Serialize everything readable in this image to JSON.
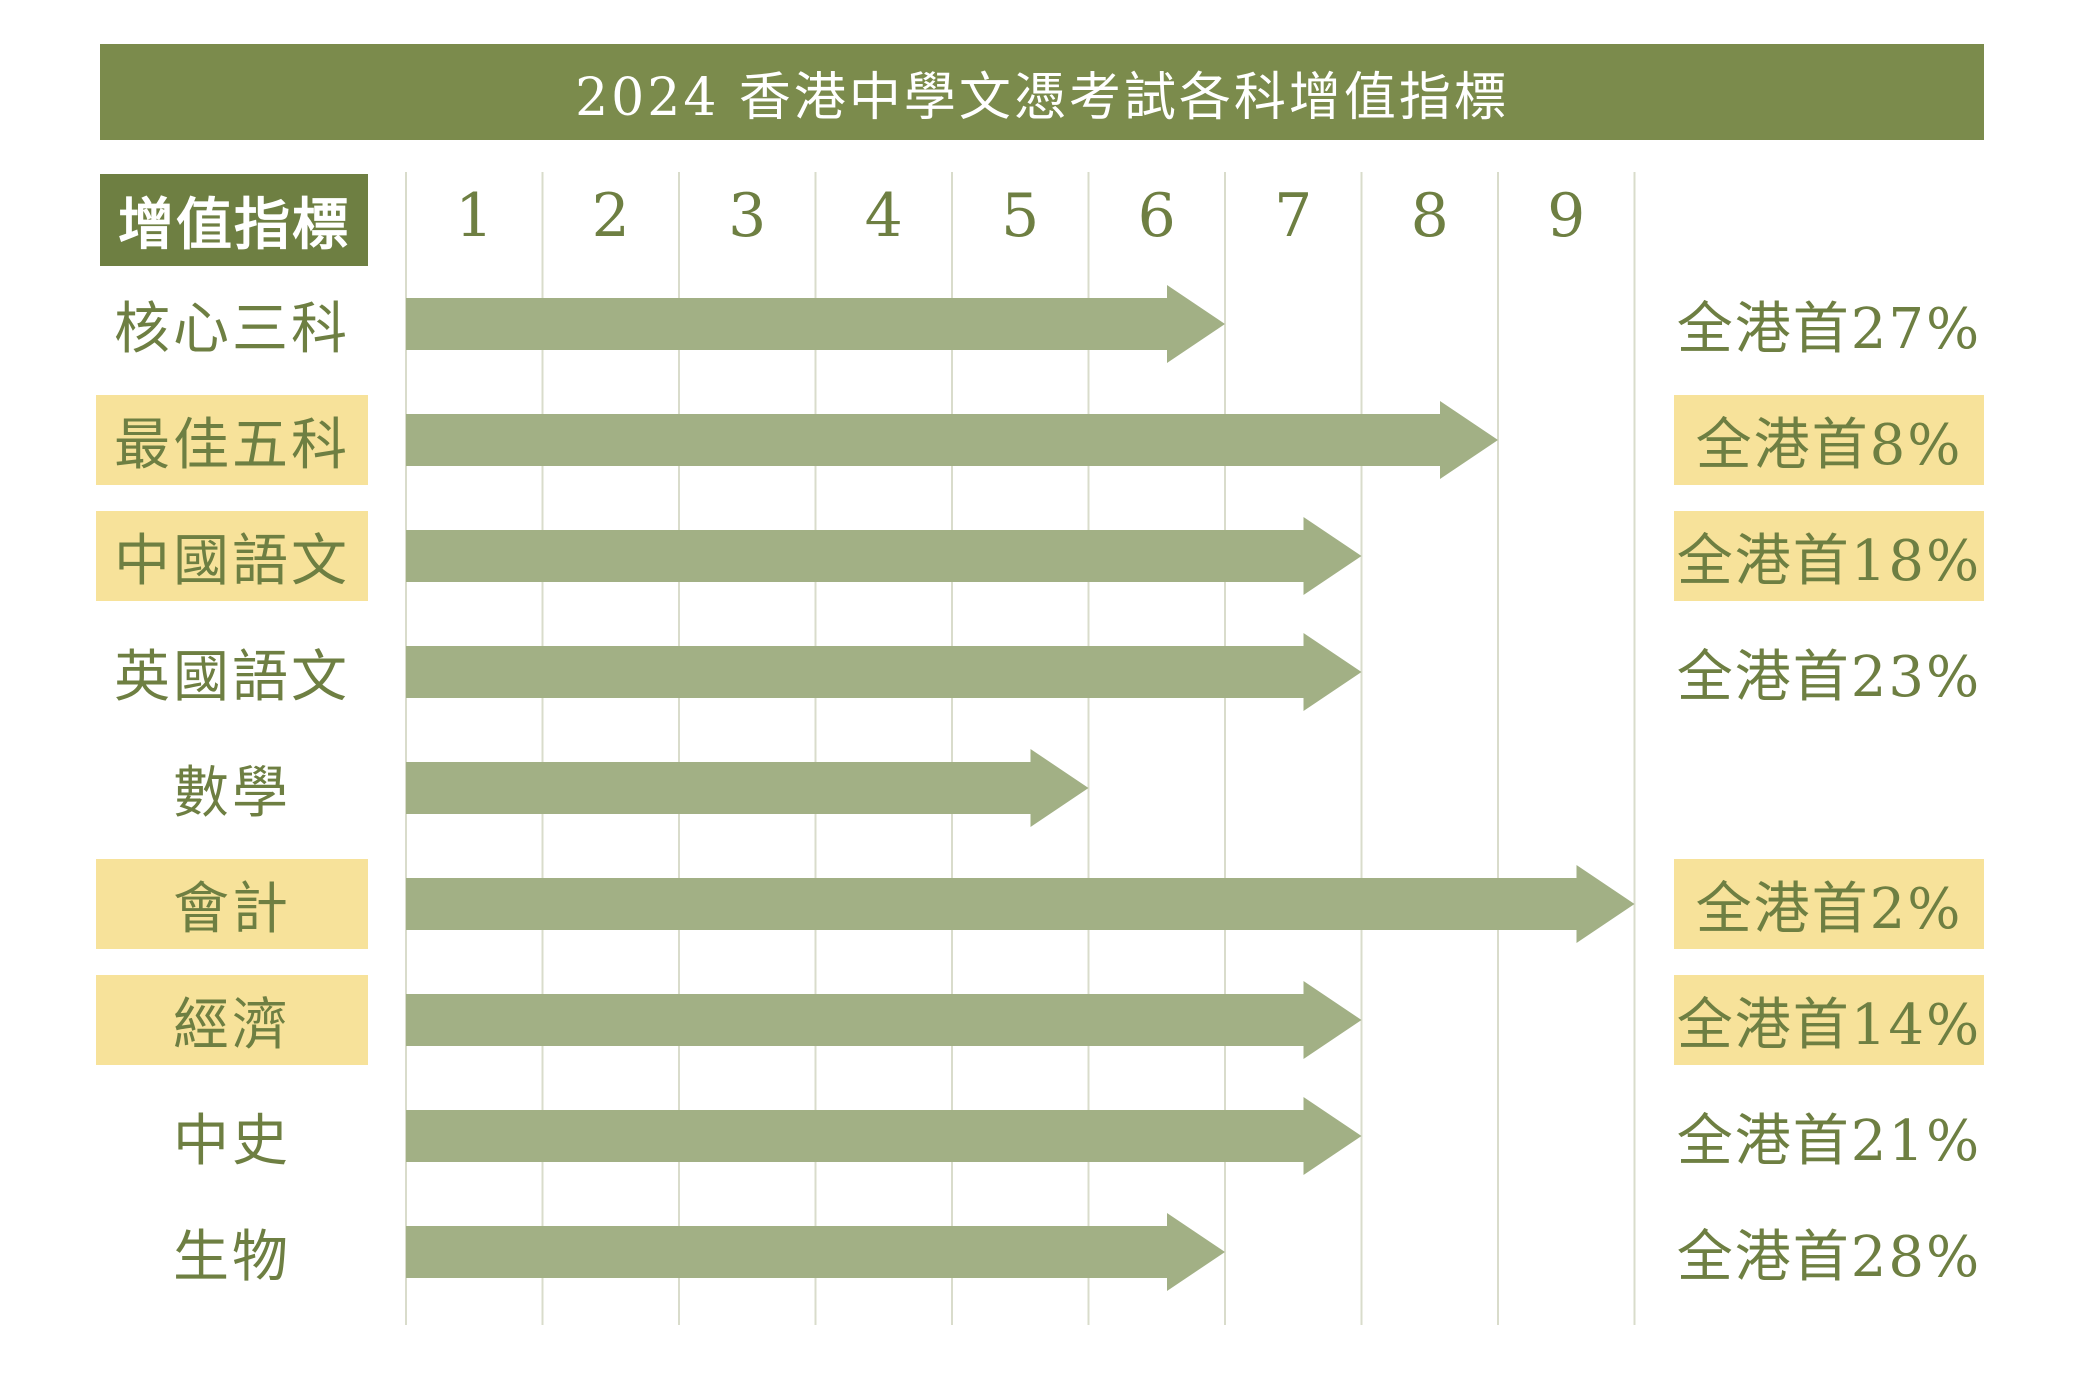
{
  "title": "2024 香港中學文憑考試各科增值指標",
  "colors": {
    "title_bg": "#7b8b4c",
    "header_bg": "#6e7f42",
    "arrow": "#a2b085",
    "highlight": "#f7e29a",
    "text": "#6e7f42",
    "grid": "#d9dccb"
  },
  "chart_data": {
    "type": "bar",
    "orientation": "horizontal",
    "header_label": "增值指標",
    "x_ticks": [
      "1",
      "2",
      "3",
      "4",
      "5",
      "6",
      "7",
      "8",
      "9"
    ],
    "xlim": [
      0,
      9
    ],
    "grid": true,
    "categories": [
      "核心三科",
      "最佳五科",
      "中國語文",
      "英國語文",
      "數學",
      "會計",
      "經濟",
      "中史",
      "生物"
    ],
    "values": [
      6,
      8,
      7,
      7,
      5,
      9,
      7,
      7,
      6
    ],
    "highlighted": [
      false,
      true,
      true,
      false,
      false,
      true,
      true,
      false,
      false
    ],
    "percentile_labels": [
      "全港首27%",
      "全港首8%",
      "全港首18%",
      "全港首23%",
      "",
      "全港首2%",
      "全港首14%",
      "全港首21%",
      "全港首28%"
    ]
  }
}
